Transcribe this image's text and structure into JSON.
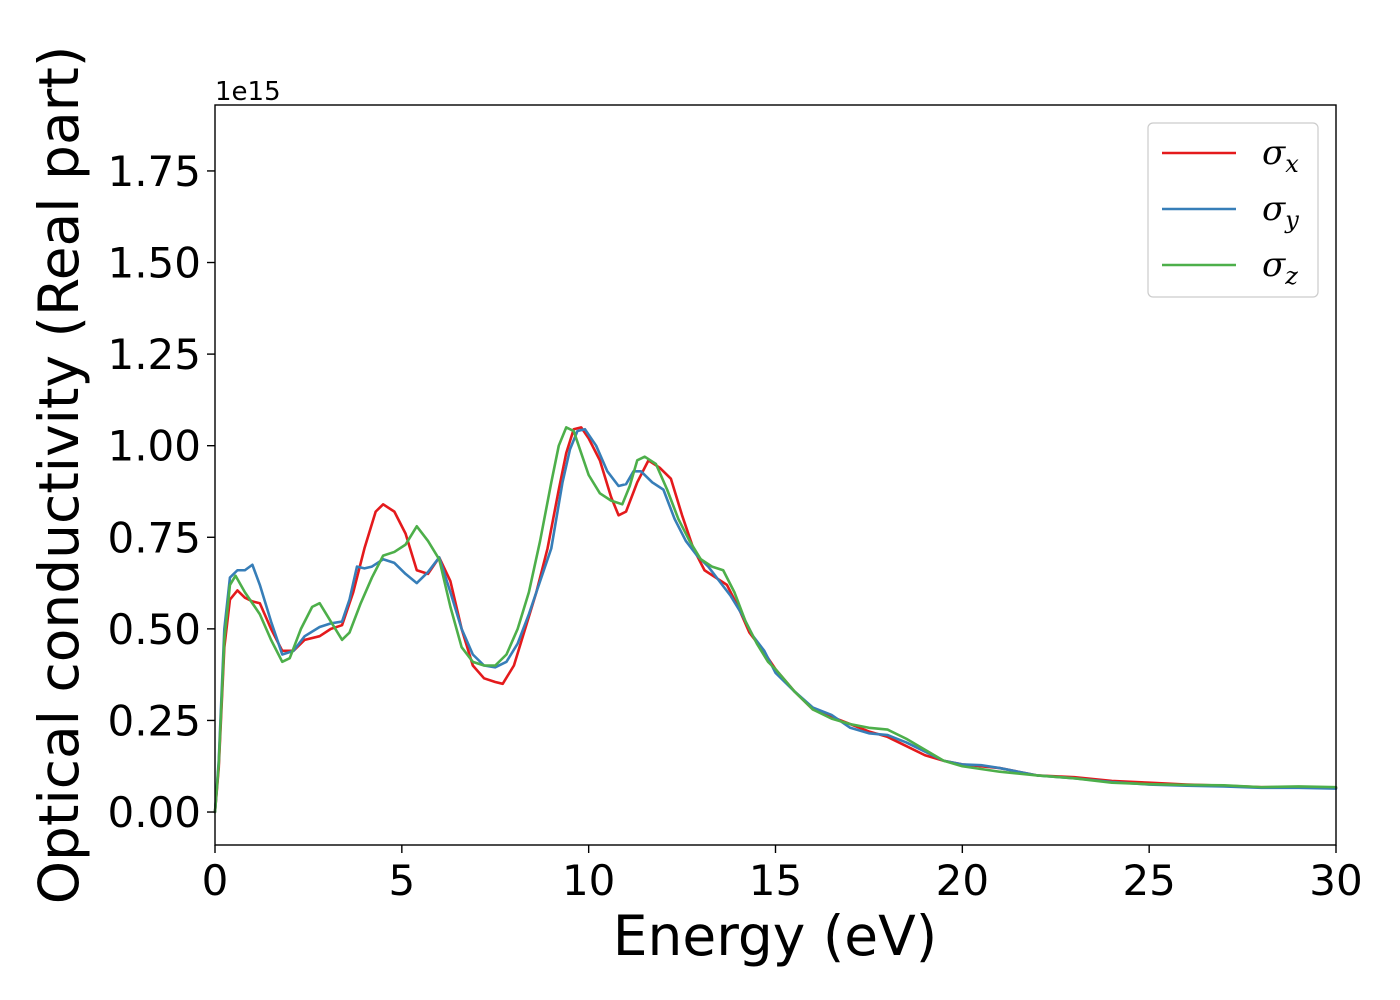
{
  "chart_data": {
    "type": "line",
    "title": "",
    "xlabel": "Energy (eV)",
    "ylabel": "Optical conductivity (Real part)",
    "y_offset_text": "1e15",
    "xlim": [
      0,
      30
    ],
    "ylim": [
      -0.09,
      1.93
    ],
    "x_ticks": [
      0,
      5,
      10,
      15,
      20,
      25,
      30
    ],
    "x_tick_labels": [
      "0",
      "5",
      "10",
      "15",
      "20",
      "25",
      "30"
    ],
    "y_ticks": [
      0.0,
      0.25,
      0.5,
      0.75,
      1.0,
      1.25,
      1.5,
      1.75
    ],
    "y_tick_labels": [
      "0.00",
      "0.25",
      "0.50",
      "0.75",
      "1.00",
      "1.25",
      "1.50",
      "1.75"
    ],
    "grid": false,
    "legend_position": "top-right",
    "series": [
      {
        "name": "σx",
        "legend_base": "σ",
        "legend_sub": "x",
        "color": "#e41a1c",
        "points": [
          [
            0,
            0.0
          ],
          [
            0.1,
            0.12
          ],
          [
            0.25,
            0.45
          ],
          [
            0.4,
            0.58
          ],
          [
            0.6,
            0.605
          ],
          [
            0.8,
            0.585
          ],
          [
            1.0,
            0.575
          ],
          [
            1.2,
            0.57
          ],
          [
            1.5,
            0.5
          ],
          [
            1.8,
            0.44
          ],
          [
            2.1,
            0.44
          ],
          [
            2.4,
            0.47
          ],
          [
            2.8,
            0.48
          ],
          [
            3.1,
            0.5
          ],
          [
            3.4,
            0.51
          ],
          [
            3.7,
            0.6
          ],
          [
            4.0,
            0.72
          ],
          [
            4.3,
            0.82
          ],
          [
            4.5,
            0.84
          ],
          [
            4.8,
            0.82
          ],
          [
            5.1,
            0.76
          ],
          [
            5.4,
            0.66
          ],
          [
            5.7,
            0.65
          ],
          [
            6.0,
            0.695
          ],
          [
            6.3,
            0.63
          ],
          [
            6.6,
            0.5
          ],
          [
            6.9,
            0.4
          ],
          [
            7.2,
            0.365
          ],
          [
            7.5,
            0.355
          ],
          [
            7.7,
            0.35
          ],
          [
            8.0,
            0.4
          ],
          [
            8.3,
            0.5
          ],
          [
            8.6,
            0.6
          ],
          [
            8.9,
            0.72
          ],
          [
            9.2,
            0.88
          ],
          [
            9.4,
            0.98
          ],
          [
            9.6,
            1.045
          ],
          [
            9.8,
            1.05
          ],
          [
            10.0,
            1.02
          ],
          [
            10.3,
            0.96
          ],
          [
            10.6,
            0.86
          ],
          [
            10.8,
            0.81
          ],
          [
            11.0,
            0.82
          ],
          [
            11.3,
            0.9
          ],
          [
            11.6,
            0.96
          ],
          [
            11.9,
            0.94
          ],
          [
            12.2,
            0.91
          ],
          [
            12.5,
            0.81
          ],
          [
            12.8,
            0.72
          ],
          [
            13.1,
            0.66
          ],
          [
            13.4,
            0.64
          ],
          [
            13.7,
            0.62
          ],
          [
            14.0,
            0.56
          ],
          [
            14.3,
            0.49
          ],
          [
            14.6,
            0.45
          ],
          [
            15.0,
            0.39
          ],
          [
            15.5,
            0.33
          ],
          [
            16.0,
            0.28
          ],
          [
            16.5,
            0.26
          ],
          [
            17.0,
            0.24
          ],
          [
            17.5,
            0.22
          ],
          [
            18.0,
            0.205
          ],
          [
            18.5,
            0.18
          ],
          [
            19.0,
            0.155
          ],
          [
            19.5,
            0.14
          ],
          [
            20.0,
            0.13
          ],
          [
            21.0,
            0.12
          ],
          [
            22.0,
            0.1
          ],
          [
            23.0,
            0.095
          ],
          [
            24.0,
            0.085
          ],
          [
            25.0,
            0.08
          ],
          [
            26.0,
            0.075
          ],
          [
            27.0,
            0.072
          ],
          [
            28.0,
            0.068
          ],
          [
            29.0,
            0.067
          ],
          [
            30.0,
            0.066
          ]
        ]
      },
      {
        "name": "σy",
        "legend_base": "σ",
        "legend_sub": "y",
        "color": "#377eb8",
        "points": [
          [
            0,
            0.0
          ],
          [
            0.1,
            0.14
          ],
          [
            0.25,
            0.5
          ],
          [
            0.4,
            0.64
          ],
          [
            0.6,
            0.66
          ],
          [
            0.8,
            0.66
          ],
          [
            1.0,
            0.675
          ],
          [
            1.2,
            0.62
          ],
          [
            1.5,
            0.52
          ],
          [
            1.8,
            0.43
          ],
          [
            2.1,
            0.44
          ],
          [
            2.4,
            0.48
          ],
          [
            2.8,
            0.505
          ],
          [
            3.1,
            0.515
          ],
          [
            3.4,
            0.52
          ],
          [
            3.6,
            0.58
          ],
          [
            3.8,
            0.67
          ],
          [
            4.0,
            0.665
          ],
          [
            4.2,
            0.67
          ],
          [
            4.5,
            0.69
          ],
          [
            4.8,
            0.68
          ],
          [
            5.1,
            0.65
          ],
          [
            5.4,
            0.625
          ],
          [
            5.7,
            0.655
          ],
          [
            6.0,
            0.695
          ],
          [
            6.3,
            0.6
          ],
          [
            6.6,
            0.5
          ],
          [
            6.9,
            0.43
          ],
          [
            7.2,
            0.4
          ],
          [
            7.5,
            0.395
          ],
          [
            7.8,
            0.41
          ],
          [
            8.1,
            0.46
          ],
          [
            8.4,
            0.54
          ],
          [
            8.7,
            0.63
          ],
          [
            9.0,
            0.72
          ],
          [
            9.3,
            0.9
          ],
          [
            9.5,
            0.99
          ],
          [
            9.7,
            1.04
          ],
          [
            9.9,
            1.045
          ],
          [
            10.2,
            1.0
          ],
          [
            10.5,
            0.93
          ],
          [
            10.8,
            0.89
          ],
          [
            11.0,
            0.895
          ],
          [
            11.2,
            0.93
          ],
          [
            11.4,
            0.93
          ],
          [
            11.7,
            0.9
          ],
          [
            12.0,
            0.88
          ],
          [
            12.3,
            0.8
          ],
          [
            12.6,
            0.74
          ],
          [
            12.9,
            0.7
          ],
          [
            13.2,
            0.67
          ],
          [
            13.5,
            0.63
          ],
          [
            13.8,
            0.59
          ],
          [
            14.1,
            0.54
          ],
          [
            14.4,
            0.48
          ],
          [
            14.7,
            0.44
          ],
          [
            15.0,
            0.38
          ],
          [
            15.5,
            0.33
          ],
          [
            16.0,
            0.285
          ],
          [
            16.5,
            0.265
          ],
          [
            17.0,
            0.23
          ],
          [
            17.5,
            0.215
          ],
          [
            18.0,
            0.21
          ],
          [
            18.5,
            0.19
          ],
          [
            19.0,
            0.165
          ],
          [
            19.5,
            0.14
          ],
          [
            20.0,
            0.13
          ],
          [
            20.5,
            0.128
          ],
          [
            21.0,
            0.12
          ],
          [
            22.0,
            0.1
          ],
          [
            23.0,
            0.092
          ],
          [
            24.0,
            0.082
          ],
          [
            25.0,
            0.075
          ],
          [
            26.0,
            0.072
          ],
          [
            27.0,
            0.07
          ],
          [
            28.0,
            0.066
          ],
          [
            29.0,
            0.066
          ],
          [
            30.0,
            0.064
          ]
        ]
      },
      {
        "name": "σz",
        "legend_base": "σ",
        "legend_sub": "z",
        "color": "#4daf4a",
        "points": [
          [
            0,
            0.0
          ],
          [
            0.1,
            0.13
          ],
          [
            0.25,
            0.47
          ],
          [
            0.4,
            0.62
          ],
          [
            0.55,
            0.645
          ],
          [
            0.8,
            0.6
          ],
          [
            1.0,
            0.57
          ],
          [
            1.2,
            0.54
          ],
          [
            1.5,
            0.47
          ],
          [
            1.8,
            0.41
          ],
          [
            2.0,
            0.42
          ],
          [
            2.3,
            0.5
          ],
          [
            2.6,
            0.56
          ],
          [
            2.8,
            0.57
          ],
          [
            3.1,
            0.52
          ],
          [
            3.4,
            0.47
          ],
          [
            3.6,
            0.49
          ],
          [
            3.9,
            0.57
          ],
          [
            4.2,
            0.64
          ],
          [
            4.5,
            0.7
          ],
          [
            4.8,
            0.71
          ],
          [
            5.1,
            0.73
          ],
          [
            5.4,
            0.78
          ],
          [
            5.7,
            0.74
          ],
          [
            6.0,
            0.69
          ],
          [
            6.3,
            0.56
          ],
          [
            6.6,
            0.45
          ],
          [
            6.9,
            0.41
          ],
          [
            7.2,
            0.4
          ],
          [
            7.5,
            0.4
          ],
          [
            7.8,
            0.43
          ],
          [
            8.1,
            0.5
          ],
          [
            8.4,
            0.6
          ],
          [
            8.7,
            0.74
          ],
          [
            9.0,
            0.9
          ],
          [
            9.2,
            1.0
          ],
          [
            9.4,
            1.05
          ],
          [
            9.6,
            1.04
          ],
          [
            9.8,
            0.98
          ],
          [
            10.0,
            0.92
          ],
          [
            10.3,
            0.87
          ],
          [
            10.6,
            0.85
          ],
          [
            10.9,
            0.84
          ],
          [
            11.1,
            0.89
          ],
          [
            11.3,
            0.96
          ],
          [
            11.5,
            0.97
          ],
          [
            11.8,
            0.95
          ],
          [
            12.1,
            0.88
          ],
          [
            12.4,
            0.8
          ],
          [
            12.7,
            0.74
          ],
          [
            13.0,
            0.69
          ],
          [
            13.3,
            0.67
          ],
          [
            13.6,
            0.66
          ],
          [
            13.9,
            0.6
          ],
          [
            14.2,
            0.52
          ],
          [
            14.5,
            0.46
          ],
          [
            14.8,
            0.41
          ],
          [
            15.0,
            0.39
          ],
          [
            15.5,
            0.33
          ],
          [
            16.0,
            0.28
          ],
          [
            16.5,
            0.255
          ],
          [
            17.0,
            0.24
          ],
          [
            17.5,
            0.23
          ],
          [
            18.0,
            0.225
          ],
          [
            18.5,
            0.2
          ],
          [
            19.0,
            0.17
          ],
          [
            19.5,
            0.14
          ],
          [
            20.0,
            0.125
          ],
          [
            21.0,
            0.11
          ],
          [
            22.0,
            0.1
          ],
          [
            23.0,
            0.092
          ],
          [
            24.0,
            0.08
          ],
          [
            25.0,
            0.076
          ],
          [
            26.0,
            0.074
          ],
          [
            27.0,
            0.073
          ],
          [
            28.0,
            0.068
          ],
          [
            29.0,
            0.07
          ],
          [
            30.0,
            0.068
          ]
        ]
      }
    ]
  }
}
